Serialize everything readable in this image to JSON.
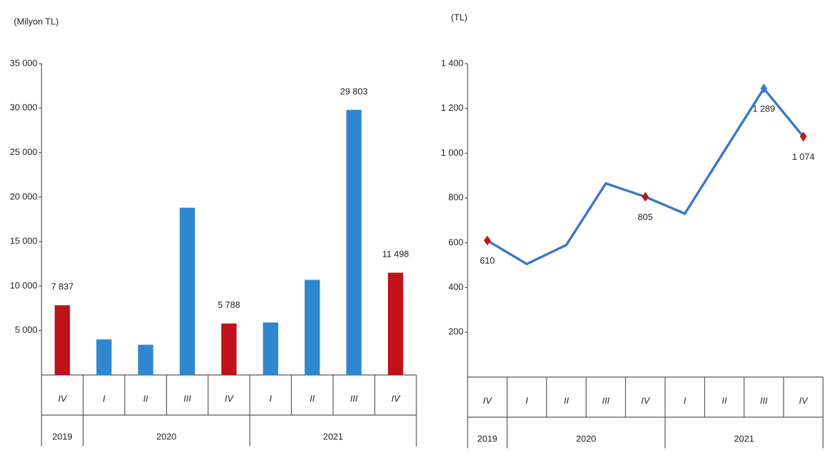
{
  "chart_data": [
    {
      "type": "bar",
      "axis_label": "(Milyon TL)",
      "categories": [
        "IV",
        "I",
        "II",
        "III",
        "IV",
        "I",
        "II",
        "III",
        "IV"
      ],
      "x_groups": [
        "2019",
        "2020",
        null,
        null,
        null,
        "2021",
        null,
        null,
        null
      ],
      "values": [
        7837,
        4000,
        3400,
        18800,
        5788,
        5900,
        10700,
        29803,
        11498
      ],
      "value_labels": [
        "7 837",
        null,
        null,
        null,
        "5 788",
        null,
        null,
        "29 803",
        "11 498"
      ],
      "colors": [
        "#c0121a",
        "#2f87cf",
        "#2f87cf",
        "#2f87cf",
        "#c0121a",
        "#2f87cf",
        "#2f87cf",
        "#2f87cf",
        "#c0121a"
      ],
      "ylim": [
        0,
        35000
      ],
      "yticks": [
        {
          "value": 5000,
          "label": "5 000"
        },
        {
          "value": 10000,
          "label": "10 000"
        },
        {
          "value": 15000,
          "label": "15 000"
        },
        {
          "value": 20000,
          "label": "20 000"
        },
        {
          "value": 25000,
          "label": "25 000"
        },
        {
          "value": 30000,
          "label": "30 000"
        },
        {
          "value": 35000,
          "label": "35 000"
        }
      ]
    },
    {
      "type": "line",
      "axis_label": "(TL)",
      "color": "#3a78c3",
      "categories": [
        "IV",
        "I",
        "II",
        "III",
        "IV",
        "I",
        "II",
        "III",
        "IV"
      ],
      "x_groups": [
        "2019",
        "2020",
        null,
        null,
        null,
        "2021",
        null,
        null,
        null
      ],
      "values": [
        610,
        505,
        590,
        865,
        805,
        730,
        1010,
        1289,
        1074
      ],
      "value_labels": [
        "610",
        null,
        null,
        null,
        "805",
        null,
        null,
        "1 289",
        "1 074"
      ],
      "marker_colors": [
        "#c0121a",
        null,
        null,
        null,
        "#c0121a",
        null,
        null,
        "#3a78c3",
        "#c0121a"
      ],
      "ylim": [
        0,
        1400
      ],
      "yticks": [
        200,
        400,
        600,
        800,
        {
          "value": 1000,
          "label": "1 000"
        },
        {
          "value": 1200,
          "label": "1 200"
        },
        {
          "value": 1400,
          "label": "1 400"
        }
      ]
    }
  ]
}
